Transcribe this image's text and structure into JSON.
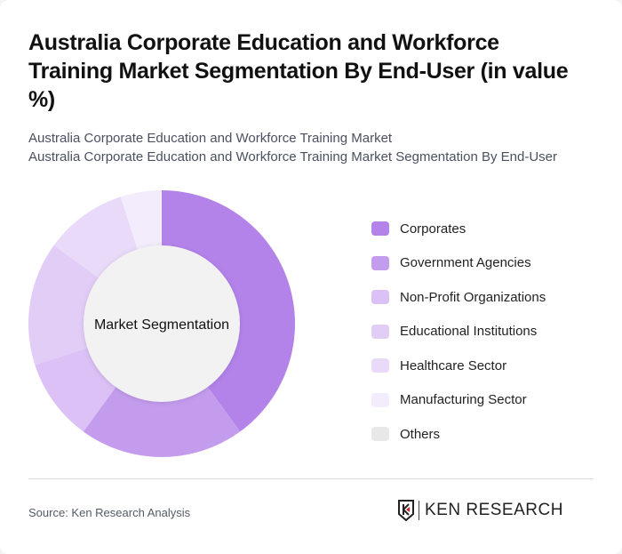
{
  "header": {
    "title": "Australia Corporate Education and Workforce Training Market Segmentation By End-User (in value %)",
    "subtitle_line1": "Australia Corporate Education and Workforce Training Market",
    "subtitle_line2": "Australia Corporate Education and Workforce Training Market Segmentation By End-User"
  },
  "chart": {
    "center_label": "Market Segmentation"
  },
  "legend": [
    {
      "label": "Corporates",
      "color": "#b383ea"
    },
    {
      "label": "Government Agencies",
      "color": "#c49cee"
    },
    {
      "label": "Non-Profit Organizations",
      "color": "#dbc1f6"
    },
    {
      "label": "Educational Institutions",
      "color": "#e2cdf7"
    },
    {
      "label": "Healthcare Sector",
      "color": "#e9dafa"
    },
    {
      "label": "Manufacturing Sector",
      "color": "#f3ecfc"
    },
    {
      "label": "Others",
      "color": "#e8e8e8"
    }
  ],
  "footer": {
    "source": "Source: Ken Research Analysis",
    "logo_text": "KEN RESEARCH"
  },
  "chart_data": {
    "type": "pie",
    "subtype": "donut",
    "title": "Australia Corporate Education and Workforce Training Market Segmentation By End-User (in value %)",
    "center_label": "Market Segmentation",
    "categories": [
      "Corporates",
      "Government Agencies",
      "Non-Profit Organizations",
      "Educational Institutions",
      "Healthcare Sector",
      "Manufacturing Sector",
      "Others"
    ],
    "values": [
      40,
      20,
      10,
      15,
      10,
      5,
      0
    ],
    "colors": [
      "#b383ea",
      "#c49cee",
      "#dbc1f6",
      "#e2cdf7",
      "#e9dafa",
      "#f3ecfc",
      "#e8e8e8"
    ],
    "legend_position": "right"
  }
}
